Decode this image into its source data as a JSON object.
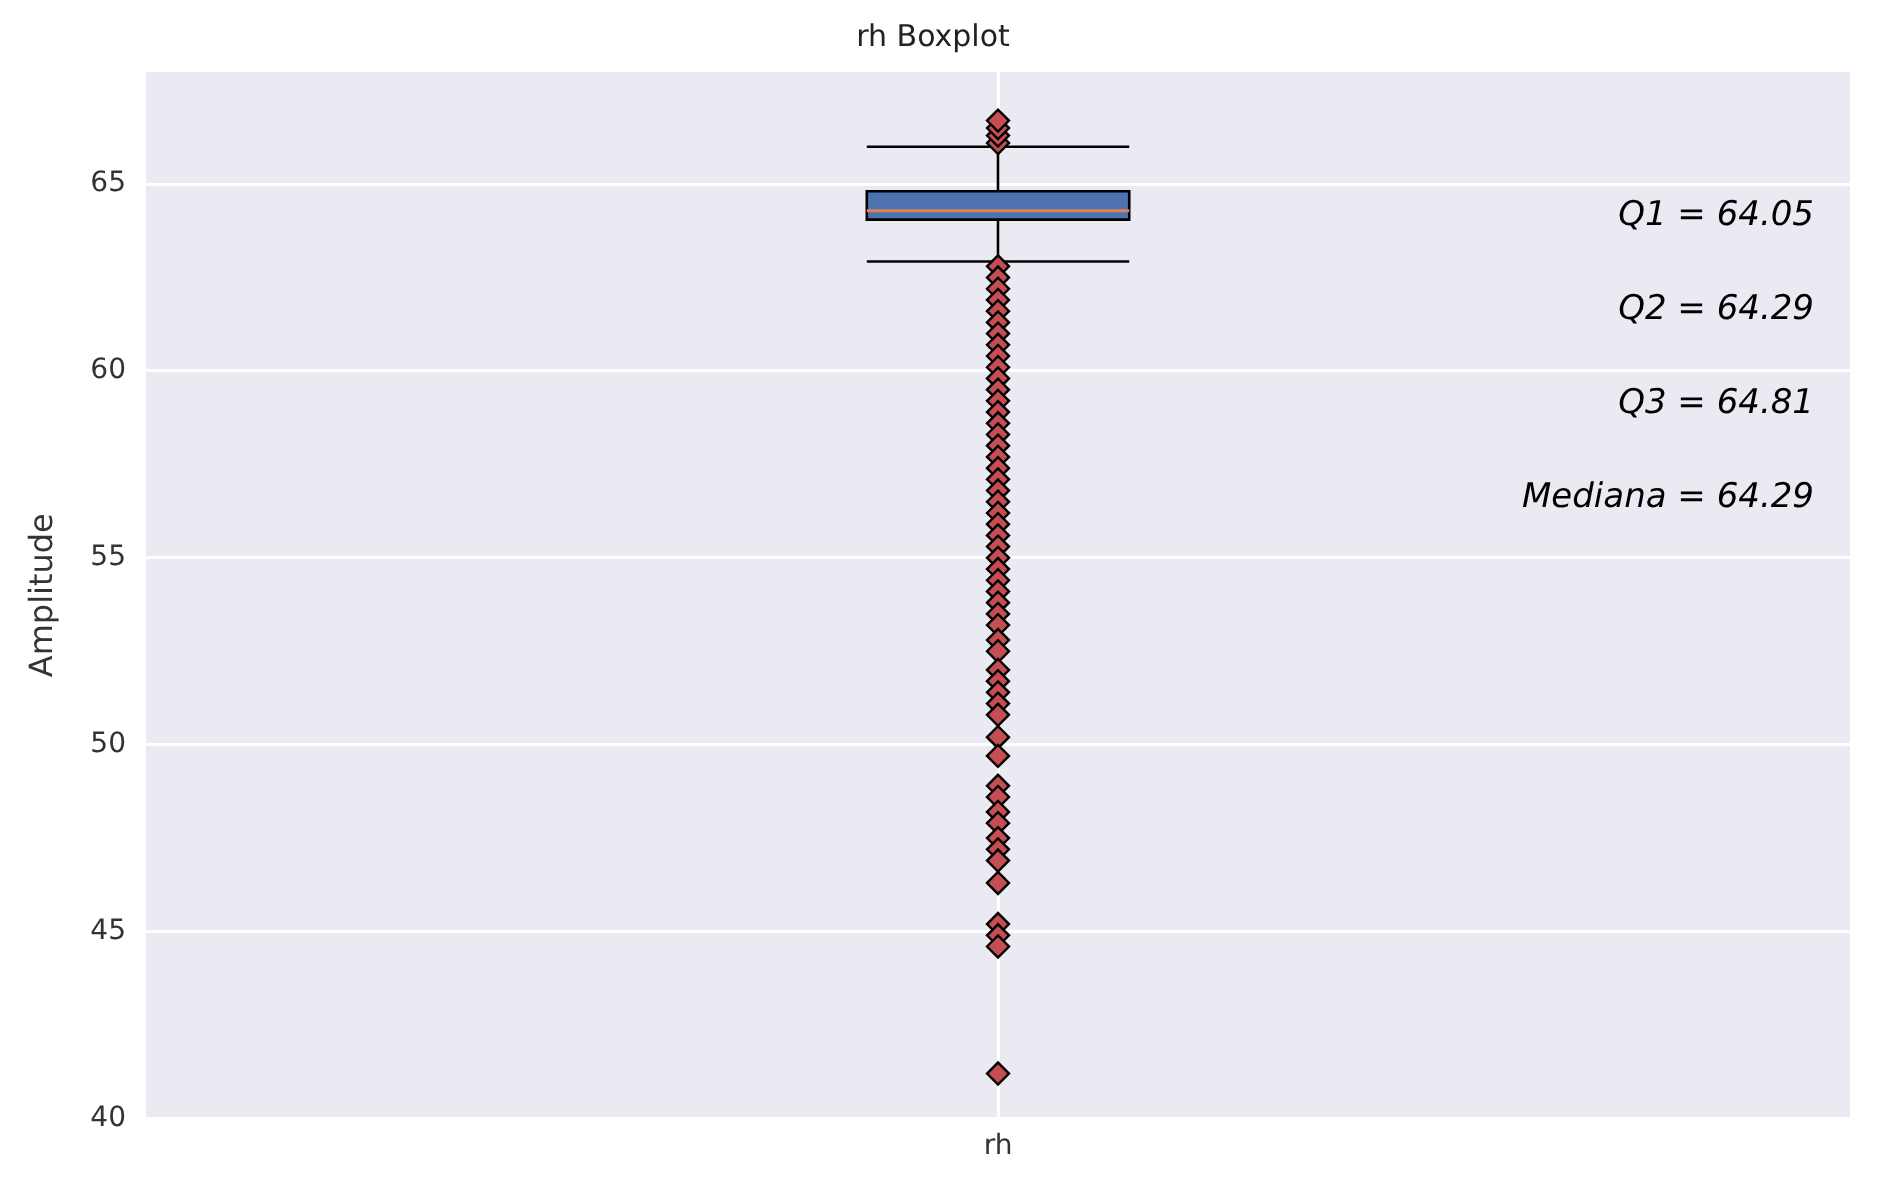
{
  "chart_data": {
    "type": "box",
    "title": "rh Boxplot",
    "ylabel": "Amplitude",
    "categories": [
      "rh"
    ],
    "boxes": [
      {
        "low": 62.93,
        "q1": 64.05,
        "median": 64.29,
        "q3": 64.81,
        "high": 66.0,
        "outliers": [
          66.1,
          66.3,
          66.5,
          66.7,
          62.8,
          62.5,
          62.2,
          61.9,
          61.6,
          61.3,
          61.0,
          60.7,
          60.4,
          60.1,
          59.8,
          59.5,
          59.2,
          58.9,
          58.6,
          58.3,
          58.0,
          57.7,
          57.4,
          57.1,
          56.8,
          56.5,
          56.2,
          55.9,
          55.6,
          55.3,
          55.0,
          54.7,
          54.4,
          54.1,
          53.8,
          53.5,
          53.2,
          52.8,
          52.5,
          52.0,
          51.7,
          51.4,
          51.1,
          50.8,
          50.2,
          49.7,
          48.9,
          48.6,
          48.2,
          47.9,
          47.5,
          47.2,
          46.9,
          46.3,
          45.2,
          44.9,
          44.6,
          41.2
        ]
      }
    ],
    "color": "#4c72b0",
    "ylim": [
      40,
      68
    ],
    "yticks": [
      40,
      45,
      50,
      55,
      60,
      65
    ],
    "grid": true,
    "marker": "diamond",
    "annotations": [
      "Q1 = 64.05",
      "Q2 = 64.29",
      "Q3 = 64.81",
      "Mediana = 64.29"
    ]
  }
}
